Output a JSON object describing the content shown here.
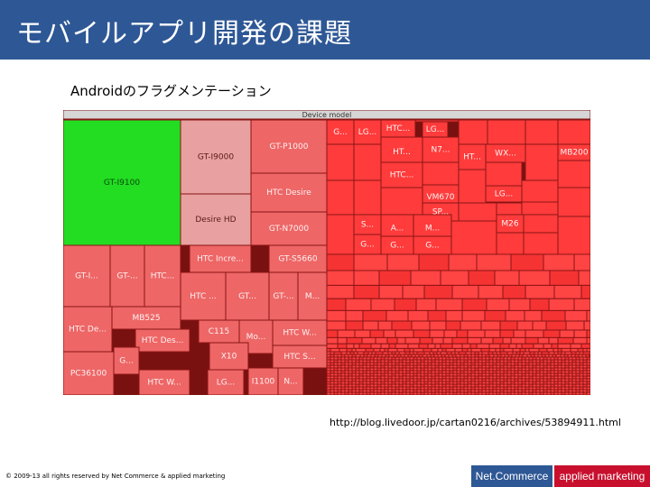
{
  "slide": {
    "title": "モバイルアプリ開発の課題",
    "subtitle": "Androidのフラグメンテーション",
    "source_url": "http://blog.livedoor.jp/cartan0216/archives/53894911.html",
    "copyright": "© 2009-13 all rights reserved by Net Commerce & applied marketing",
    "badge_left": "Net.Commerce",
    "badge_right": "applied marketing"
  },
  "colors": {
    "title_bar": "#2e5795",
    "badge_right": "#c8102e",
    "green": "#22dd22",
    "pink": "#e8a0a0",
    "salmon": "#ee6666",
    "red": "#ff3b3b",
    "header": "#d6d6d6"
  },
  "chart_data": {
    "type": "treemap",
    "title": "Device model",
    "cells": [
      {
        "label": "GT-I9100",
        "color": "green"
      },
      {
        "label": "GT-I9000",
        "color": "pink"
      },
      {
        "label": "Desire HD",
        "color": "pink"
      },
      {
        "label": "GT-P1000",
        "color": "salmon"
      },
      {
        "label": "HTC Desire",
        "color": "salmon"
      },
      {
        "label": "GT-N7000",
        "color": "salmon"
      },
      {
        "label": "GT-S5660",
        "color": "salmon"
      },
      {
        "label": "HTC Incre...",
        "color": "salmon"
      },
      {
        "label": "HTC ...",
        "color": "salmon"
      },
      {
        "label": "GT...",
        "color": "salmon"
      },
      {
        "label": "GT-...",
        "color": "salmon"
      },
      {
        "label": "M...",
        "color": "salmon"
      },
      {
        "label": "GT-I...",
        "color": "salmon"
      },
      {
        "label": "GT-...",
        "color": "salmon"
      },
      {
        "label": "HTC...",
        "color": "salmon"
      },
      {
        "label": "HTC De...",
        "color": "salmon"
      },
      {
        "label": "MB525",
        "color": "salmon"
      },
      {
        "label": "HTC Des...",
        "color": "salmon"
      },
      {
        "label": "PC36100",
        "color": "salmon"
      },
      {
        "label": "G...",
        "color": "salmon"
      },
      {
        "label": "HTC W...",
        "color": "salmon"
      },
      {
        "label": "LG...",
        "color": "salmon"
      },
      {
        "label": "C115",
        "color": "salmon"
      },
      {
        "label": "Mo...",
        "color": "salmon"
      },
      {
        "label": "HTC W...",
        "color": "salmon"
      },
      {
        "label": "X10",
        "color": "salmon"
      },
      {
        "label": "HTC S...",
        "color": "salmon"
      },
      {
        "label": "I1100",
        "color": "salmon"
      },
      {
        "label": "N...",
        "color": "salmon"
      },
      {
        "label": "G...",
        "color": "red"
      },
      {
        "label": "LG...",
        "color": "red"
      },
      {
        "label": "HTC...",
        "color": "red"
      },
      {
        "label": "LG...",
        "color": "red"
      },
      {
        "label": "HT...",
        "color": "red"
      },
      {
        "label": "N7...",
        "color": "red"
      },
      {
        "label": "HTC...",
        "color": "red"
      },
      {
        "label": "VM670",
        "color": "red"
      },
      {
        "label": "SP...",
        "color": "red"
      },
      {
        "label": "HT...",
        "color": "red"
      },
      {
        "label": "WX...",
        "color": "red"
      },
      {
        "label": "MB200",
        "color": "red"
      },
      {
        "label": "LG...",
        "color": "red"
      },
      {
        "label": "S...",
        "color": "red"
      },
      {
        "label": "G...",
        "color": "red"
      },
      {
        "label": "A...",
        "color": "red"
      },
      {
        "label": "G...",
        "color": "red"
      },
      {
        "label": "M...",
        "color": "red"
      },
      {
        "label": "G...",
        "color": "red"
      },
      {
        "label": "M26",
        "color": "red"
      }
    ]
  }
}
